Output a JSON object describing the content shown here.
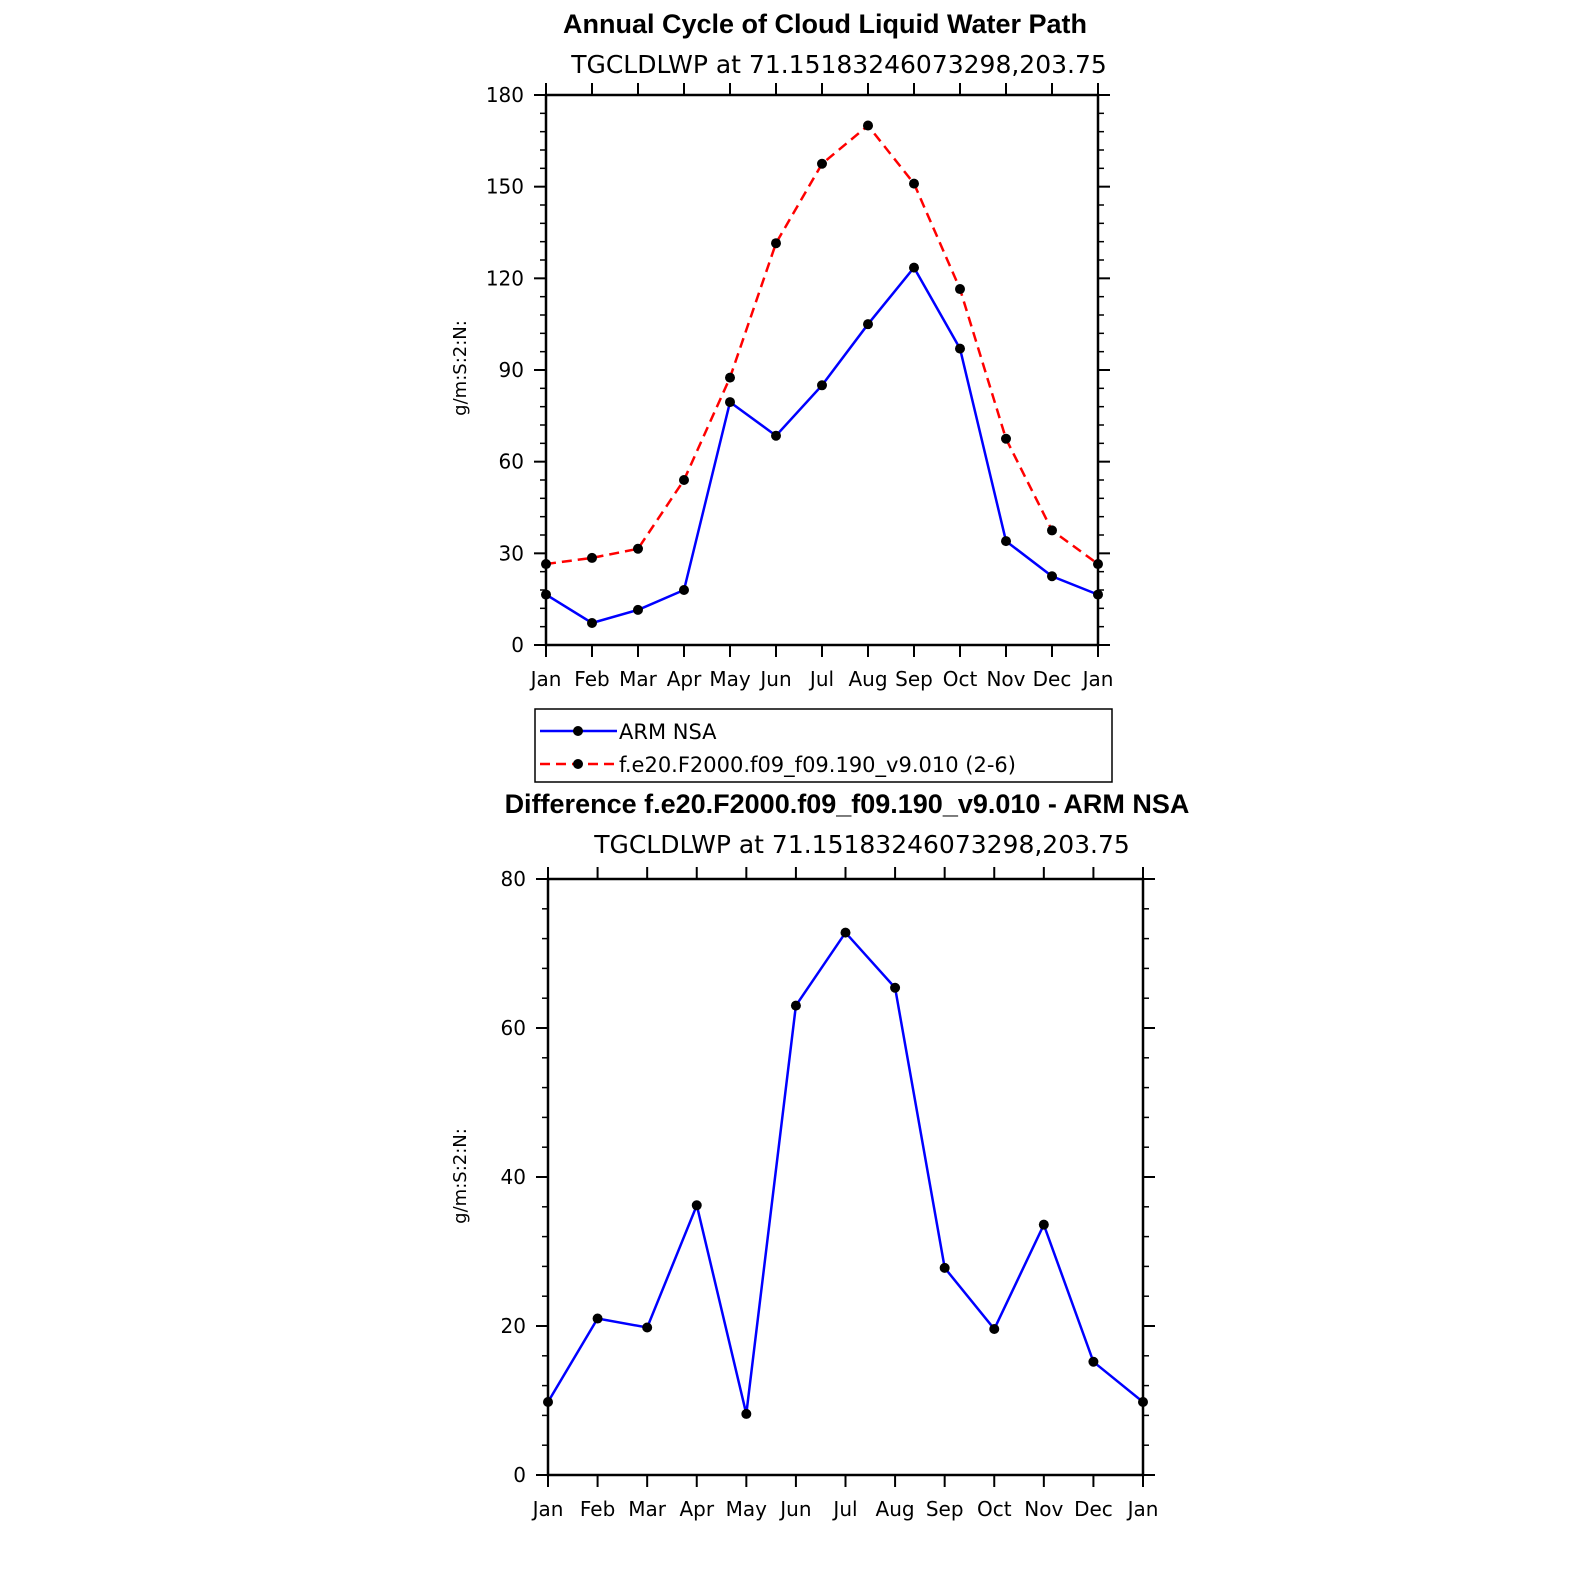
{
  "chart_data": [
    {
      "type": "line",
      "title": "Annual Cycle of Cloud Liquid Water Path",
      "subtitle": "TGCLDLWP at 71.15183246073298,203.75",
      "xlabel": "",
      "ylabel": "g/m:S:2:N:",
      "categories": [
        "Jan",
        "Feb",
        "Mar",
        "Apr",
        "May",
        "Jun",
        "Jul",
        "Aug",
        "Sep",
        "Oct",
        "Nov",
        "Dec",
        "Jan"
      ],
      "ylim": [
        0,
        180
      ],
      "yticks": [
        0,
        30,
        60,
        90,
        120,
        150,
        180
      ],
      "series": [
        {
          "name": "ARM NSA",
          "color": "#0000ff",
          "dash": "solid",
          "values": [
            16.5,
            7.2,
            11.5,
            18.0,
            79.5,
            68.5,
            85.0,
            105.0,
            123.5,
            97.0,
            34.0,
            22.5,
            16.5
          ]
        },
        {
          "name": "f.e20.F2000.f09_f09.190_v9.010 (2-6)",
          "color": "#ff0000",
          "dash": "dashed",
          "values": [
            26.5,
            28.5,
            31.5,
            54.0,
            87.5,
            131.5,
            157.5,
            170.0,
            151.0,
            116.5,
            67.5,
            37.5,
            26.5
          ]
        }
      ],
      "legend": {
        "placement": "below",
        "entries": [
          "ARM NSA",
          "f.e20.F2000.f09_f09.190_v9.010 (2-6)"
        ]
      }
    },
    {
      "type": "line",
      "title": "Difference f.e20.F2000.f09_f09.190_v9.010 - ARM NSA",
      "subtitle": "TGCLDLWP at 71.15183246073298,203.75",
      "xlabel": "",
      "ylabel": "g/m:S:2:N:",
      "categories": [
        "Jan",
        "Feb",
        "Mar",
        "Apr",
        "May",
        "Jun",
        "Jul",
        "Aug",
        "Sep",
        "Oct",
        "Nov",
        "Dec",
        "Jan"
      ],
      "ylim": [
        0,
        80
      ],
      "yticks": [
        0,
        20,
        40,
        60,
        80
      ],
      "series": [
        {
          "name": "Difference",
          "color": "#0000ff",
          "dash": "solid",
          "values": [
            9.8,
            21.0,
            19.8,
            36.2,
            8.2,
            63.0,
            72.8,
            65.4,
            27.8,
            19.6,
            33.6,
            15.2,
            9.8
          ]
        }
      ]
    }
  ]
}
